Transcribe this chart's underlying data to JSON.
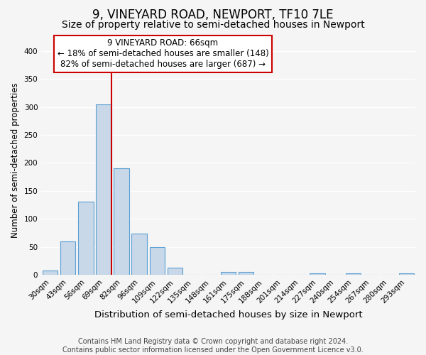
{
  "title": "9, VINEYARD ROAD, NEWPORT, TF10 7LE",
  "subtitle": "Size of property relative to semi-detached houses in Newport",
  "xlabel": "Distribution of semi-detached houses by size in Newport",
  "ylabel": "Number of semi-detached properties",
  "categories": [
    "30sqm",
    "43sqm",
    "56sqm",
    "69sqm",
    "82sqm",
    "96sqm",
    "109sqm",
    "122sqm",
    "135sqm",
    "148sqm",
    "161sqm",
    "175sqm",
    "188sqm",
    "201sqm",
    "214sqm",
    "227sqm",
    "240sqm",
    "254sqm",
    "267sqm",
    "280sqm",
    "293sqm"
  ],
  "values": [
    7,
    60,
    131,
    305,
    190,
    74,
    50,
    13,
    0,
    0,
    5,
    5,
    0,
    0,
    0,
    2,
    0,
    3,
    0,
    0,
    2
  ],
  "bar_color": "#c8d8e8",
  "bar_edge_color": "#5a9fd4",
  "vline_x_index": 3,
  "vline_color": "#cc0000",
  "annotation_title": "9 VINEYARD ROAD: 66sqm",
  "annotation_line1": "← 18% of semi-detached houses are smaller (148)",
  "annotation_line2": "82% of semi-detached houses are larger (687) →",
  "annotation_box_color": "#ffffff",
  "annotation_box_edge": "#cc0000",
  "ylim": [
    0,
    410
  ],
  "yticks": [
    0,
    50,
    100,
    150,
    200,
    250,
    300,
    350,
    400
  ],
  "footer_line1": "Contains HM Land Registry data © Crown copyright and database right 2024.",
  "footer_line2": "Contains public sector information licensed under the Open Government Licence v3.0.",
  "background_color": "#f5f5f5",
  "grid_color": "#ffffff",
  "title_fontsize": 12,
  "subtitle_fontsize": 10,
  "xlabel_fontsize": 9.5,
  "ylabel_fontsize": 8.5,
  "tick_fontsize": 7.5,
  "annotation_title_fontsize": 9,
  "annotation_fontsize": 8.5,
  "footer_fontsize": 7
}
